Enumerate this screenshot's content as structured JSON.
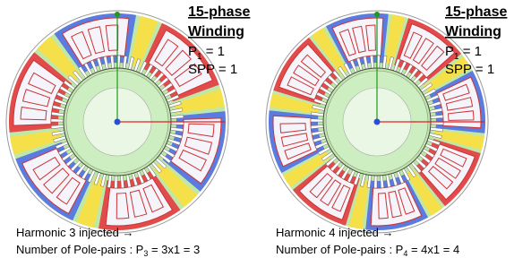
{
  "panels": [
    {
      "title": [
        "15-phase",
        "Winding"
      ],
      "p1": {
        "symbol": "P",
        "sub": "1",
        "rest": " = 1"
      },
      "spp": "SPP = 1",
      "caption": [
        "Harmonic 3 injected →",
        {
          "text": "Number of Pole-pairs : P",
          "sub": "3",
          "rest": " = 3x1 = 3"
        }
      ]
    },
    {
      "title": [
        "15-phase",
        "Winding"
      ],
      "p1": {
        "symbol": "P",
        "sub": "1",
        "rest": " = 1"
      },
      "spp": "SPP = 1",
      "caption": [
        "Harmonic 4 injected →",
        {
          "text": "Number of Pole-pairs : P",
          "sub": "4",
          "rest": " = 4x1 = 4"
        }
      ]
    }
  ]
}
